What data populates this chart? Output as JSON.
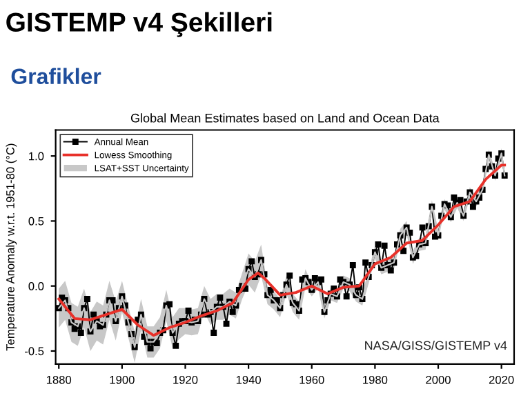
{
  "chart_data": {
    "type": "line",
    "title": "Global Mean Estimates based on Land and Ocean Data",
    "ylabel": "Temperature Anomaly w.r.t. 1951-80 (°C)",
    "annotations": [
      "GISTEMP v4 Şekilleri",
      "Grafikler",
      "NASA/GISS/GISTEMP v4"
    ],
    "xlim": [
      1879,
      2024
    ],
    "ylim": [
      -0.6,
      1.2
    ],
    "xticks": [
      1880,
      1900,
      1920,
      1940,
      1960,
      1980,
      2000,
      2020
    ],
    "yticks": [
      {
        "value": -0.5,
        "label": "-0.5"
      },
      {
        "value": 0,
        "label": "0.0"
      },
      {
        "value": 0.5,
        "label": "0.5"
      },
      {
        "value": 1.0,
        "label": "1.0"
      }
    ],
    "grid": false,
    "legend": "top left",
    "series": [
      {
        "name": "Annual Mean",
        "color": "#000000",
        "marker": "square",
        "x": [
          1880,
          1881,
          1882,
          1883,
          1884,
          1885,
          1886,
          1887,
          1888,
          1889,
          1890,
          1891,
          1892,
          1893,
          1894,
          1895,
          1896,
          1897,
          1898,
          1899,
          1900,
          1901,
          1902,
          1903,
          1904,
          1905,
          1906,
          1907,
          1908,
          1909,
          1910,
          1911,
          1912,
          1913,
          1914,
          1915,
          1916,
          1917,
          1918,
          1919,
          1920,
          1921,
          1922,
          1923,
          1924,
          1925,
          1926,
          1927,
          1928,
          1929,
          1930,
          1931,
          1932,
          1933,
          1934,
          1935,
          1936,
          1937,
          1938,
          1939,
          1940,
          1941,
          1942,
          1943,
          1944,
          1945,
          1946,
          1947,
          1948,
          1949,
          1950,
          1951,
          1952,
          1953,
          1954,
          1955,
          1956,
          1957,
          1958,
          1959,
          1960,
          1961,
          1962,
          1963,
          1964,
          1965,
          1966,
          1967,
          1968,
          1969,
          1970,
          1971,
          1972,
          1973,
          1974,
          1975,
          1976,
          1977,
          1978,
          1979,
          1980,
          1981,
          1982,
          1983,
          1984,
          1985,
          1986,
          1987,
          1988,
          1989,
          1990,
          1991,
          1992,
          1993,
          1994,
          1995,
          1996,
          1997,
          1998,
          1999,
          2000,
          2001,
          2002,
          2003,
          2004,
          2005,
          2006,
          2007,
          2008,
          2009,
          2010,
          2011,
          2012,
          2013,
          2014,
          2015,
          2016,
          2017,
          2018,
          2019,
          2020,
          2021
        ],
        "values": [
          -0.17,
          -0.09,
          -0.11,
          -0.17,
          -0.28,
          -0.33,
          -0.31,
          -0.36,
          -0.17,
          -0.1,
          -0.35,
          -0.22,
          -0.27,
          -0.31,
          -0.3,
          -0.22,
          -0.11,
          -0.11,
          -0.27,
          -0.17,
          -0.08,
          -0.15,
          -0.28,
          -0.37,
          -0.47,
          -0.26,
          -0.22,
          -0.39,
          -0.43,
          -0.48,
          -0.43,
          -0.44,
          -0.36,
          -0.34,
          -0.15,
          -0.14,
          -0.36,
          -0.46,
          -0.29,
          -0.27,
          -0.27,
          -0.19,
          -0.28,
          -0.26,
          -0.27,
          -0.22,
          -0.1,
          -0.22,
          -0.2,
          -0.36,
          -0.16,
          -0.09,
          -0.16,
          -0.29,
          -0.12,
          -0.2,
          -0.15,
          -0.03,
          0.0,
          -0.02,
          0.13,
          0.19,
          0.07,
          0.09,
          0.2,
          0.09,
          -0.07,
          -0.03,
          -0.11,
          -0.11,
          -0.17,
          -0.07,
          0.01,
          0.08,
          -0.13,
          -0.14,
          -0.19,
          0.05,
          0.06,
          0.03,
          -0.03,
          0.06,
          0.03,
          0.05,
          -0.2,
          -0.11,
          -0.06,
          -0.02,
          -0.08,
          0.05,
          0.03,
          -0.08,
          0.01,
          0.16,
          -0.07,
          -0.01,
          -0.1,
          0.18,
          0.07,
          0.16,
          0.26,
          0.32,
          0.14,
          0.31,
          0.16,
          0.12,
          0.18,
          0.32,
          0.39,
          0.27,
          0.45,
          0.41,
          0.22,
          0.23,
          0.32,
          0.45,
          0.33,
          0.46,
          0.61,
          0.38,
          0.39,
          0.54,
          0.63,
          0.62,
          0.53,
          0.68,
          0.64,
          0.66,
          0.54,
          0.65,
          0.72,
          0.61,
          0.65,
          0.68,
          0.74,
          0.9,
          1.01,
          0.92,
          0.85,
          0.98,
          1.02,
          0.85
        ]
      },
      {
        "name": "Lowess Smoothing",
        "color": "#e8312a",
        "x": [
          1880,
          1885,
          1890,
          1895,
          1900,
          1905,
          1910,
          1915,
          1920,
          1925,
          1930,
          1935,
          1940,
          1943,
          1945,
          1950,
          1955,
          1960,
          1965,
          1970,
          1975,
          1980,
          1985,
          1990,
          1995,
          2000,
          2005,
          2010,
          2015,
          2020,
          2021
        ],
        "values": [
          -0.1,
          -0.25,
          -0.26,
          -0.22,
          -0.18,
          -0.3,
          -0.38,
          -0.32,
          -0.28,
          -0.23,
          -0.19,
          -0.13,
          0.05,
          0.1,
          0.06,
          -0.07,
          -0.05,
          0.0,
          -0.06,
          -0.01,
          0.0,
          0.17,
          0.22,
          0.33,
          0.35,
          0.47,
          0.61,
          0.65,
          0.82,
          0.93,
          0.93
        ]
      },
      {
        "name": "LSAT+SST Uncertainty",
        "color": "#c8c8c8",
        "x": [
          1880,
          1882,
          1884,
          1886,
          1888,
          1890,
          1892,
          1894,
          1896,
          1898,
          1900,
          1902,
          1904,
          1906,
          1908,
          1910,
          1912,
          1914,
          1916,
          1918,
          1920,
          1922,
          1924,
          1926,
          1928,
          1930,
          1932,
          1934,
          1936,
          1938,
          1940,
          1942,
          1944,
          1946,
          1948,
          1950,
          1952,
          1954,
          1956,
          1958,
          1960,
          1962,
          1964,
          1966,
          1968,
          1970,
          1972,
          1974,
          1976,
          1978,
          1980,
          1982,
          1984,
          1986,
          1988,
          1990,
          1992,
          1994,
          1996,
          1998,
          2000,
          2002,
          2004,
          2006,
          2008,
          2010,
          2012,
          2014,
          2016,
          2018,
          2020,
          2021
        ],
        "values": [
          -0.17,
          -0.11,
          -0.28,
          -0.31,
          -0.17,
          -0.35,
          -0.27,
          -0.3,
          -0.11,
          -0.27,
          -0.08,
          -0.28,
          -0.47,
          -0.22,
          -0.43,
          -0.43,
          -0.36,
          -0.15,
          -0.36,
          -0.29,
          -0.27,
          -0.28,
          -0.27,
          -0.1,
          -0.2,
          -0.16,
          -0.16,
          -0.12,
          -0.15,
          0.0,
          0.13,
          0.07,
          0.2,
          -0.07,
          -0.11,
          -0.17,
          0.01,
          -0.13,
          -0.19,
          0.06,
          -0.03,
          0.03,
          -0.2,
          -0.06,
          -0.08,
          0.03,
          0.01,
          -0.07,
          -0.1,
          0.07,
          0.26,
          0.14,
          0.16,
          0.18,
          0.39,
          0.45,
          0.22,
          0.32,
          0.33,
          0.61,
          0.39,
          0.63,
          0.53,
          0.64,
          0.54,
          0.72,
          0.65,
          0.74,
          1.01,
          0.85,
          1.02,
          0.85
        ],
        "lower": [
          -0.32,
          -0.26,
          -0.43,
          -0.46,
          -0.32,
          -0.5,
          -0.42,
          -0.45,
          -0.26,
          -0.42,
          -0.2,
          -0.4,
          -0.59,
          -0.34,
          -0.55,
          -0.55,
          -0.48,
          -0.27,
          -0.48,
          -0.41,
          -0.37,
          -0.38,
          -0.37,
          -0.2,
          -0.3,
          -0.26,
          -0.26,
          -0.22,
          -0.25,
          -0.1,
          0.01,
          -0.05,
          0.08,
          -0.14,
          -0.18,
          -0.24,
          -0.06,
          -0.2,
          -0.26,
          -0.01,
          -0.08,
          -0.02,
          -0.25,
          -0.11,
          -0.13,
          -0.02,
          -0.04,
          -0.12,
          -0.15,
          0.02,
          0.21,
          0.09,
          0.11,
          0.13,
          0.34,
          0.4,
          0.17,
          0.27,
          0.28,
          0.56,
          0.35,
          0.59,
          0.49,
          0.6,
          0.5,
          0.68,
          0.61,
          0.7,
          0.97,
          0.81,
          0.98,
          0.81
        ],
        "upper": [
          -0.02,
          0.04,
          -0.13,
          -0.16,
          -0.02,
          -0.2,
          -0.12,
          -0.15,
          0.04,
          -0.12,
          0.04,
          -0.16,
          -0.35,
          -0.1,
          -0.31,
          -0.31,
          -0.24,
          -0.03,
          -0.24,
          -0.17,
          -0.17,
          -0.18,
          -0.17,
          0.0,
          -0.1,
          -0.06,
          -0.06,
          -0.02,
          -0.05,
          0.1,
          0.25,
          0.19,
          0.32,
          0.0,
          -0.04,
          -0.1,
          0.08,
          -0.06,
          -0.12,
          0.13,
          0.02,
          0.08,
          -0.15,
          -0.01,
          -0.03,
          0.08,
          0.06,
          -0.02,
          -0.05,
          0.12,
          0.31,
          0.19,
          0.21,
          0.23,
          0.44,
          0.5,
          0.27,
          0.37,
          0.38,
          0.66,
          0.43,
          0.67,
          0.57,
          0.68,
          0.58,
          0.76,
          0.69,
          0.78,
          1.05,
          0.89,
          1.06,
          0.89
        ]
      }
    ]
  }
}
